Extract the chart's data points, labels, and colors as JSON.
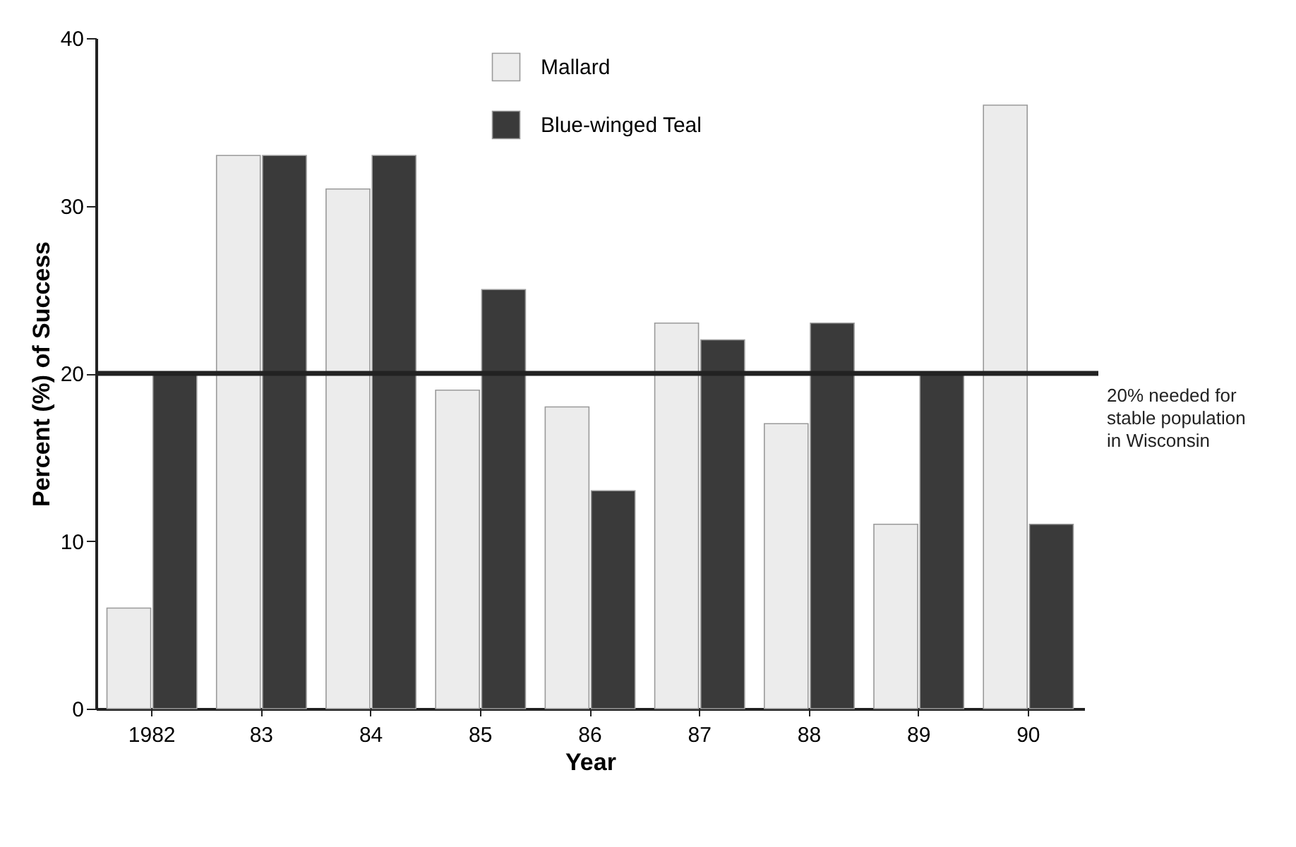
{
  "chart_data": {
    "type": "bar",
    "xlabel": "Year",
    "ylabel": "Percent (%) of Success",
    "categories": [
      "1982",
      "83",
      "84",
      "85",
      "86",
      "87",
      "88",
      "89",
      "90"
    ],
    "series": [
      {
        "name": "Mallard",
        "color": "#ececec",
        "values": [
          6,
          33,
          31,
          19,
          18,
          23,
          17,
          11,
          36
        ]
      },
      {
        "name": "Blue-winged Teal",
        "color": "#3a3a3a",
        "values": [
          20,
          33,
          33,
          25,
          13,
          22,
          23,
          20,
          11
        ]
      }
    ],
    "ylim": [
      0,
      40
    ],
    "yticks": [
      0,
      10,
      20,
      30,
      40
    ],
    "grid": false,
    "legend": "top",
    "ref_lines": [
      {
        "axis": "y",
        "value": 20,
        "label": "20% needed for stable population in Wisconsin",
        "color": "#222222"
      }
    ]
  }
}
